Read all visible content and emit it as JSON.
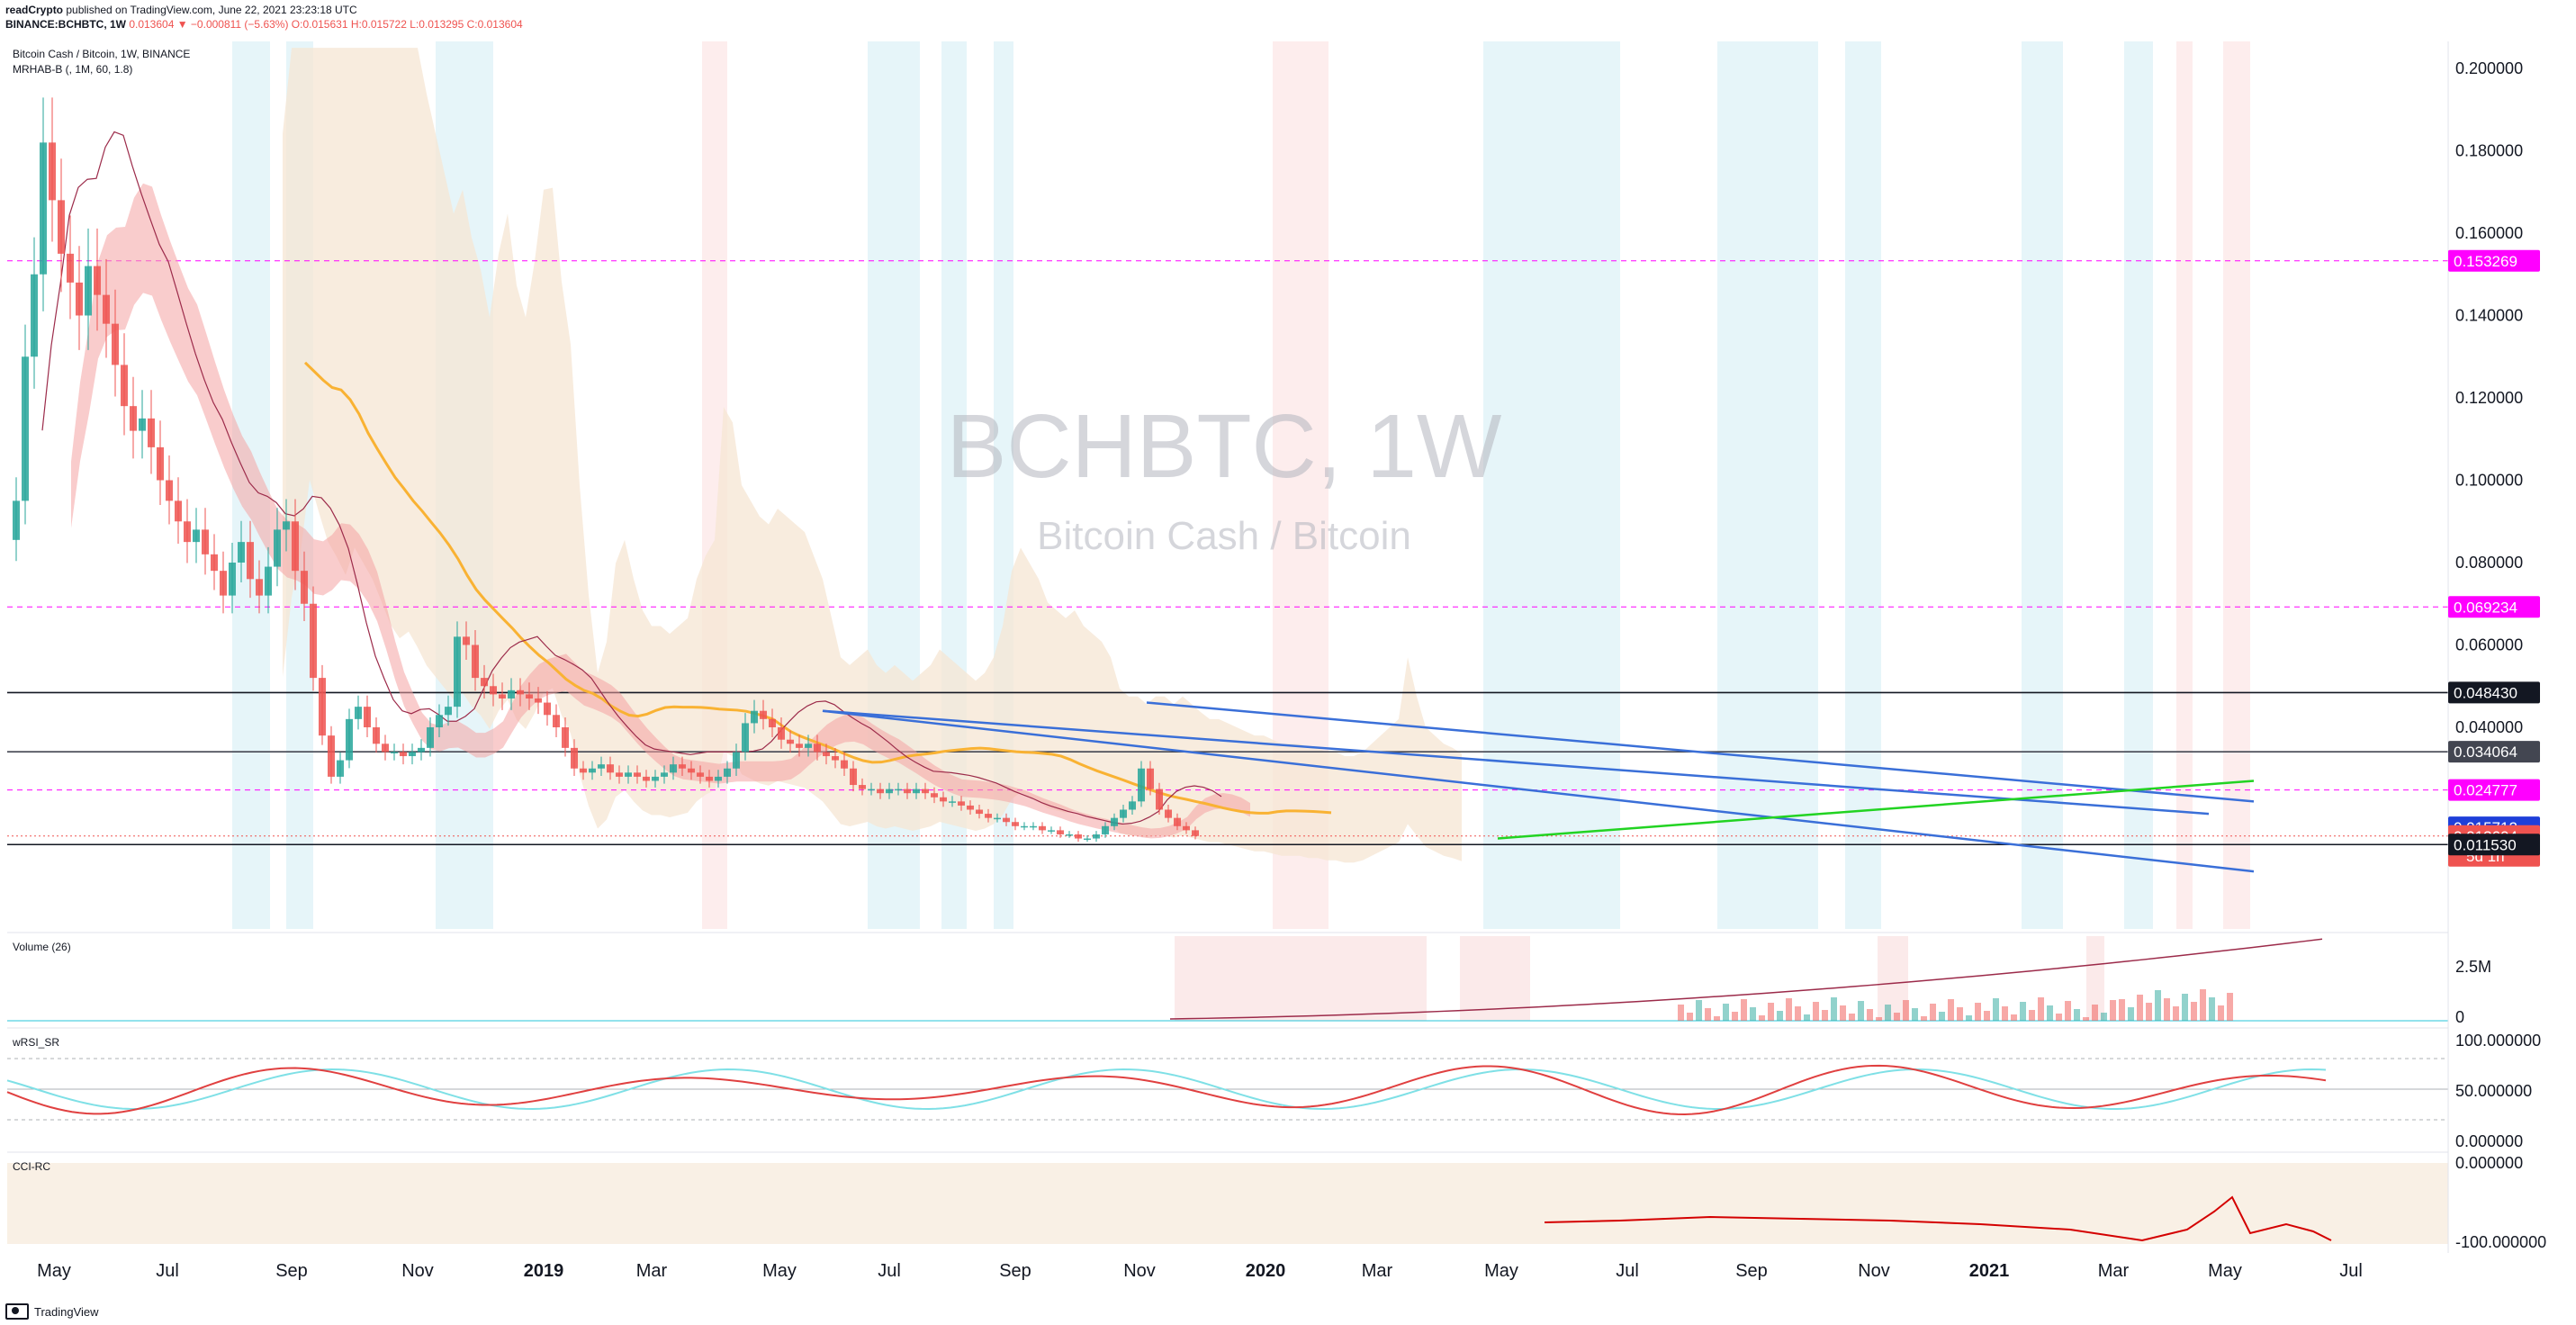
{
  "header": {
    "line1_user": "readCrypto",
    "line1_rest": " published on TradingView.com, June 22, 2021 23:23:18 UTC",
    "line2_symbol": "BINANCE:BCHBTC, 1W ",
    "line2_change": "0.013604 ▼ −0.000811 (−5.63%)",
    "line2_ohlc": " O:0.015631 H:0.015722 L:0.013295 C:0.013604"
  },
  "legend": {
    "title": "Bitcoin Cash / Bitcoin, 1W, BINANCE",
    "indicator": "MRHAB-B (, 1M, 60, 1.8)"
  },
  "watermark": {
    "ticker": "BCHBTC, 1W",
    "name": "Bitcoin Cash / Bitcoin"
  },
  "panes": {
    "volume": {
      "label": "Volume (26)",
      "ticks": [
        "2.5M",
        "0"
      ]
    },
    "rsi": {
      "label": "wRSI_SR",
      "ticks": [
        "100.000000",
        "50.000000",
        "0.000000"
      ]
    },
    "cci": {
      "label": "CCI-RC",
      "ticks": [
        "0.000000",
        "-100.000000"
      ]
    }
  },
  "footer": {
    "brand": "TradingView"
  },
  "colors": {
    "up": "#26a69a",
    "down": "#ef5350",
    "magenta": "#ff00ff",
    "blue_line": "#2962ff",
    "orange_ma": "#f9b233",
    "green_line": "#22d322",
    "cloud": "#f5e6d3",
    "ribbon_red": "#f4a3a3",
    "ribbon_cyan": "#7fd6e0"
  },
  "chart_data": {
    "type": "candlestick",
    "xlabel": "",
    "ylabel": "",
    "ylim": [
      0.0,
      0.21
    ],
    "x_ticks": [
      "May",
      "Jul",
      "Sep",
      "Nov",
      "2019",
      "Mar",
      "May",
      "Jul",
      "Sep",
      "Nov",
      "2020",
      "Mar",
      "May",
      "Jul",
      "Sep",
      "Nov",
      "2021",
      "Mar",
      "May",
      "Jul"
    ],
    "y_ticks": [
      "0.200000",
      "0.180000",
      "0.160000",
      "0.140000",
      "0.120000",
      "0.100000",
      "0.080000",
      "0.060000",
      "0.040000"
    ],
    "price_labels": [
      {
        "value": 0.153269,
        "text": "0.153269",
        "color": "#ff00ff",
        "line": "dashed"
      },
      {
        "value": 0.069234,
        "text": "0.069234",
        "color": "#ff00ff",
        "line": "dashed"
      },
      {
        "value": 0.04843,
        "text": "0.048430",
        "color": "#131722",
        "line": "solid"
      },
      {
        "value": 0.034064,
        "text": "0.034064",
        "color": "#434651",
        "line": "solid"
      },
      {
        "value": 0.024777,
        "text": "0.024777",
        "color": "#ff00ff",
        "line": "dashed"
      },
      {
        "value": 0.015712,
        "text": "0.015712",
        "color": "#1e3fd9",
        "line": "none"
      },
      {
        "value": 0.013604,
        "text": "0.013604",
        "sub": "5d 1h",
        "color": "#ef5350",
        "line": "dotted"
      },
      {
        "value": 0.01153,
        "text": "0.011530",
        "color": "#131722",
        "line": "solid"
      }
    ],
    "weekly_close": [
      0.095,
      0.13,
      0.15,
      0.182,
      0.168,
      0.155,
      0.148,
      0.14,
      0.152,
      0.145,
      0.138,
      0.128,
      0.118,
      0.112,
      0.115,
      0.108,
      0.1,
      0.095,
      0.09,
      0.085,
      0.088,
      0.082,
      0.078,
      0.072,
      0.08,
      0.085,
      0.076,
      0.072,
      0.079,
      0.088,
      0.09,
      0.078,
      0.07,
      0.052,
      0.038,
      0.028,
      0.032,
      0.042,
      0.045,
      0.04,
      0.036,
      0.034,
      0.034,
      0.033,
      0.034,
      0.035,
      0.04,
      0.043,
      0.045,
      0.062,
      0.06,
      0.052,
      0.05,
      0.048,
      0.047,
      0.049,
      0.048,
      0.047,
      0.046,
      0.043,
      0.04,
      0.035,
      0.03,
      0.029,
      0.03,
      0.031,
      0.029,
      0.028,
      0.029,
      0.028,
      0.027,
      0.028,
      0.029,
      0.031,
      0.03,
      0.029,
      0.028,
      0.027,
      0.028,
      0.03,
      0.034,
      0.041,
      0.044,
      0.042,
      0.04,
      0.037,
      0.036,
      0.035,
      0.036,
      0.034,
      0.033,
      0.032,
      0.03,
      0.026,
      0.025,
      0.025,
      0.024,
      0.025,
      0.025,
      0.024,
      0.025,
      0.024,
      0.023,
      0.022,
      0.022,
      0.021,
      0.02,
      0.019,
      0.018,
      0.018,
      0.017,
      0.016,
      0.016,
      0.016,
      0.015,
      0.015,
      0.014,
      0.014,
      0.013,
      0.013,
      0.014,
      0.016,
      0.018,
      0.02,
      0.022,
      0.03,
      0.025,
      0.02,
      0.018,
      0.016,
      0.015,
      0.0136
    ],
    "indicator_lines": [
      {
        "name": "",
        "style": "blue trendline",
        "points": [
          [
            44,
            0.044
          ],
          [
            132,
            0.019
          ]
        ]
      },
      {
        "name": "",
        "style": "blue trendline",
        "points": [
          [
            44,
            0.044
          ],
          [
            137,
            0.005
          ]
        ]
      },
      {
        "name": "",
        "style": "blue trendline",
        "points": [
          [
            80,
            0.046
          ],
          [
            137,
            0.022
          ]
        ]
      },
      {
        "name": "",
        "style": "green trendline",
        "points": [
          [
            119,
            0.013
          ],
          [
            137,
            0.027
          ]
        ]
      }
    ]
  }
}
